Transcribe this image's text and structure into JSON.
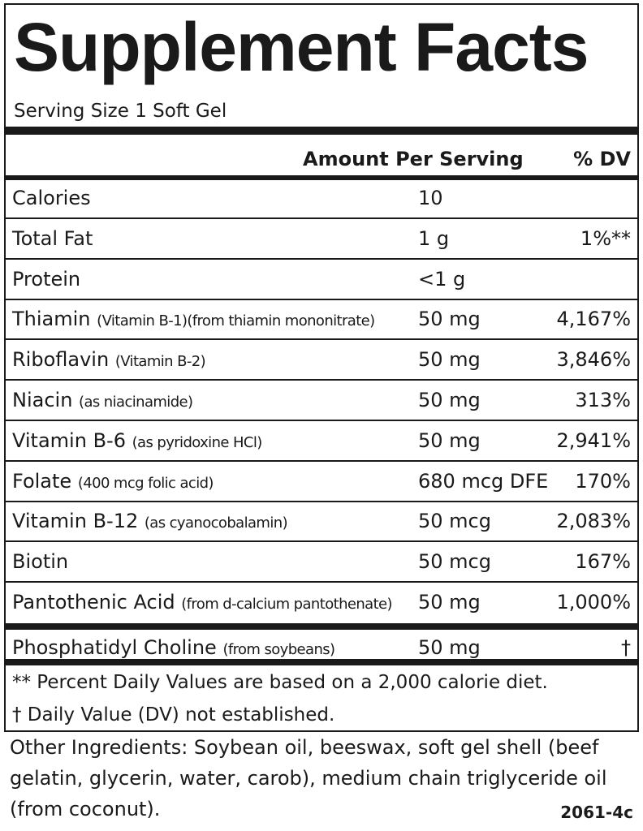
{
  "header": {
    "title": "Supplement Facts",
    "serving_size": "Serving Size 1 Soft Gel"
  },
  "table": {
    "columns": {
      "amount": "Amount Per Serving",
      "dv": "% DV"
    },
    "rows": [
      {
        "name": "Calories",
        "amount": "10"
      },
      {
        "name": "Total Fat",
        "amount": "1 g",
        "dv": "1%**"
      },
      {
        "name": "Protein",
        "amount": "<1 g"
      },
      {
        "name": "Thiamin",
        "note": "(Vitamin B-1)(from thiamin mononitrate)",
        "amount": "50 mg",
        "dv": "4,167%"
      },
      {
        "name": "Riboflavin",
        "note": "(Vitamin B-2)",
        "amount": "50 mg",
        "dv": "3,846%"
      },
      {
        "name": "Niacin",
        "note": "(as niacinamide)",
        "amount": "50 mg",
        "dv": "313%"
      },
      {
        "name": "Vitamin B-6",
        "note": "(as pyridoxine HCl)",
        "amount": "50 mg",
        "dv": "2,941%"
      },
      {
        "name": "Folate",
        "note": "(400 mcg folic acid)",
        "amount": "680 mcg DFE",
        "dv": "170%"
      },
      {
        "name": "Vitamin B-12",
        "note": "(as cyanocobalamin)",
        "amount": "50 mcg",
        "dv": "2,083%"
      },
      {
        "name": "Biotin",
        "amount": "50 mcg",
        "dv": "167%"
      },
      {
        "name": "Pantothenic Acid",
        "note": "(from d-calcium pantothenate)",
        "amount": "50 mg",
        "dv": "1,000%"
      }
    ],
    "other_rows": [
      {
        "name": "Phosphatidyl Choline",
        "note": "(from soybeans)",
        "amount": "50 mg",
        "dv": "†"
      }
    ]
  },
  "footnotes": [
    "** Percent Daily Values are based on a 2,000 calorie diet.",
    "† Daily Value (DV) not established."
  ],
  "other_ingredients": "Other Ingredients:  Soybean oil, beeswax, soft gel shell (beef gelatin, glycerin, water, carob), medium chain triglyceride oil (from coconut).",
  "code": "2061-4c"
}
